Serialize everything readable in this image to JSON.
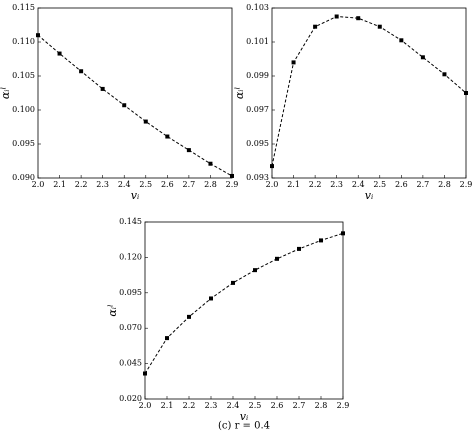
{
  "chart_data": [
    {
      "type": "line",
      "x_label": "vᵢ",
      "y_label": "αᵢˡ",
      "x": [
        2.0,
        2.1,
        2.2,
        2.3,
        2.4,
        2.5,
        2.6,
        2.7,
        2.8,
        2.9
      ],
      "values": [
        0.111,
        0.1083,
        0.1057,
        0.1031,
        0.1007,
        0.0983,
        0.0961,
        0.0941,
        0.0921,
        0.0903
      ],
      "color": "#000000",
      "xlim": [
        2.0,
        2.9
      ],
      "ylim": [
        0.09,
        0.115
      ],
      "xticks": [
        {
          "value": 2.0,
          "label": "2.0"
        },
        2.1,
        2.2,
        2.3,
        2.4,
        2.5,
        2.6,
        2.7,
        2.8,
        2.9
      ],
      "yticks": [
        {
          "value": 0.09,
          "label": "0.090"
        },
        0.095,
        {
          "value": 0.1,
          "label": "0.100"
        },
        0.105,
        {
          "value": 0.11,
          "label": "0.110"
        },
        0.115
      ]
    },
    {
      "type": "line",
      "x_label": "vᵢ",
      "y_label": "αᵢˡ",
      "x": [
        2.0,
        2.1,
        2.2,
        2.3,
        2.4,
        2.5,
        2.6,
        2.7,
        2.8,
        2.9
      ],
      "values": [
        0.0937,
        0.0998,
        0.1019,
        0.1025,
        0.1024,
        0.1019,
        0.1011,
        0.1001,
        0.0991,
        0.098
      ],
      "color": "#000000",
      "xlim": [
        2.0,
        2.9
      ],
      "ylim": [
        0.093,
        0.103
      ],
      "xticks": [
        {
          "value": 2.0,
          "label": "2.0"
        },
        2.1,
        2.2,
        2.3,
        2.4,
        2.5,
        2.6,
        2.7,
        2.8,
        2.9
      ],
      "yticks": [
        0.093,
        0.095,
        0.097,
        0.099,
        0.101,
        0.103
      ]
    },
    {
      "type": "line",
      "x_label": "vᵢ",
      "y_label": "αᵢˡ",
      "caption": "(c) r = 0.4",
      "x": [
        2.0,
        2.1,
        2.2,
        2.3,
        2.4,
        2.5,
        2.6,
        2.7,
        2.8,
        2.9
      ],
      "values": [
        0.038,
        0.063,
        0.078,
        0.091,
        0.102,
        0.111,
        0.119,
        0.126,
        0.132,
        0.137
      ],
      "color": "#000000",
      "xlim": [
        2.0,
        2.9
      ],
      "ylim": [
        0.02,
        0.145
      ],
      "xticks": [
        {
          "value": 2.0,
          "label": "2.0"
        },
        2.1,
        2.2,
        2.3,
        2.4,
        2.5,
        2.6,
        2.7,
        2.8,
        2.9
      ],
      "yticks": [
        {
          "value": 0.02,
          "label": "0.020"
        },
        0.045,
        {
          "value": 0.07,
          "label": "0.070"
        },
        0.095,
        {
          "value": 0.12,
          "label": "0.120"
        },
        0.145
      ]
    }
  ]
}
